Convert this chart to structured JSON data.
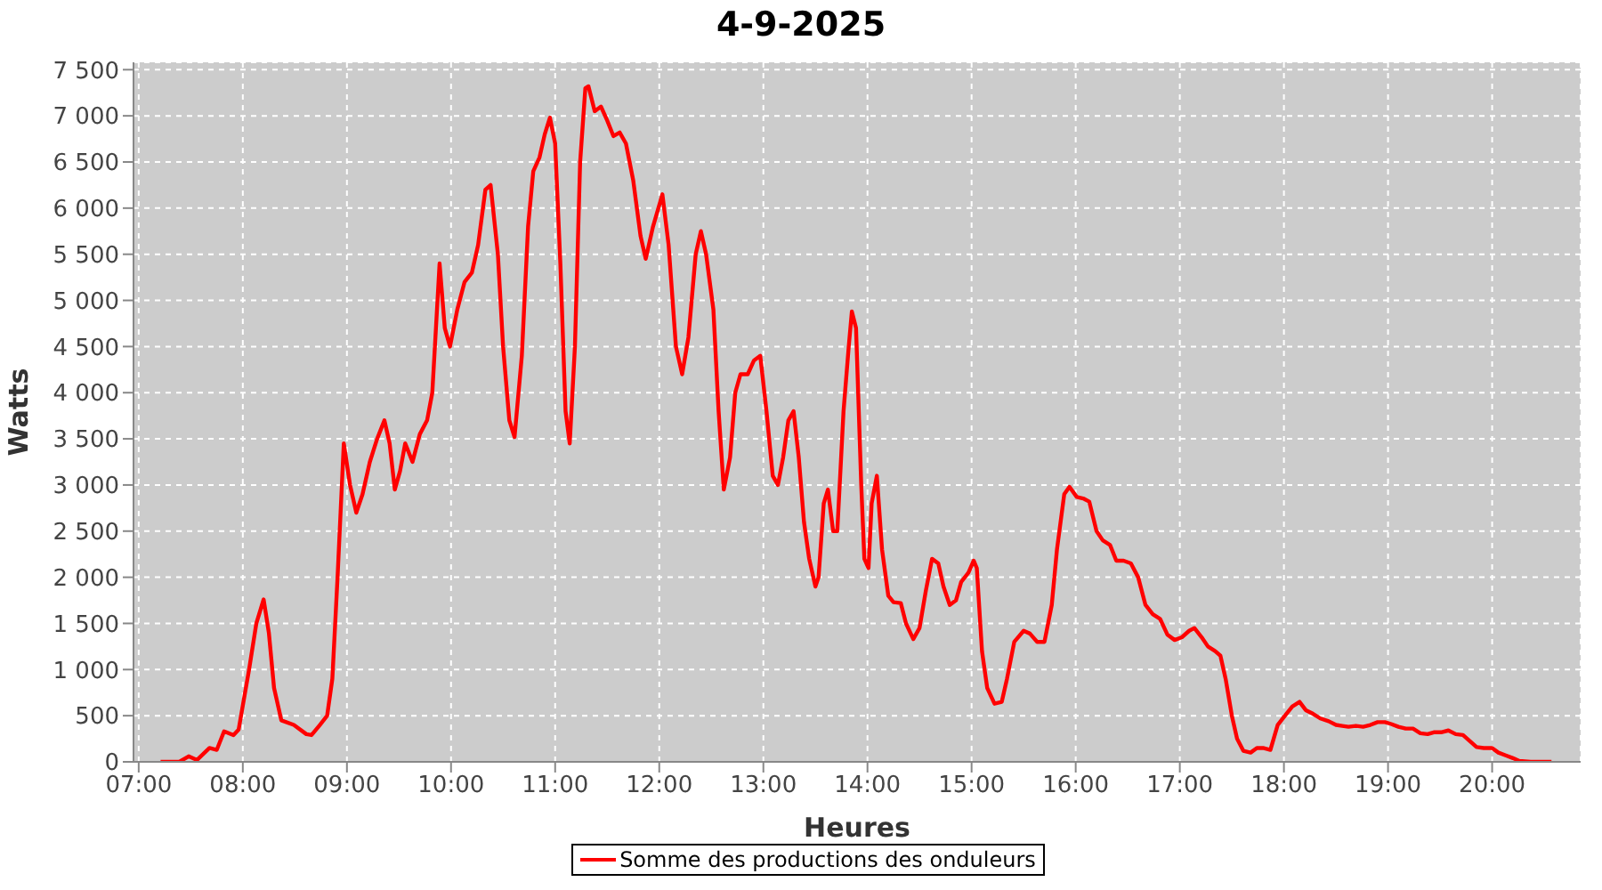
{
  "chart_data": {
    "type": "line",
    "title": "4-9-2025",
    "xlabel": "Heures",
    "ylabel": "Watts",
    "xlim": [
      6.95,
      20.85
    ],
    "xticks": [
      {
        "value": 7,
        "label": "07:00"
      },
      {
        "value": 8,
        "label": "08:00"
      },
      {
        "value": 9,
        "label": "09:00"
      },
      {
        "value": 10,
        "label": "10:00"
      },
      {
        "value": 11,
        "label": "11:00"
      },
      {
        "value": 12,
        "label": "12:00"
      },
      {
        "value": 13,
        "label": "13:00"
      },
      {
        "value": 14,
        "label": "14:00"
      },
      {
        "value": 15,
        "label": "15:00"
      },
      {
        "value": 16,
        "label": "16:00"
      },
      {
        "value": 17,
        "label": "17:00"
      },
      {
        "value": 18,
        "label": "18:00"
      },
      {
        "value": 19,
        "label": "19:00"
      },
      {
        "value": 20,
        "label": "20:00"
      }
    ],
    "ylim": [
      0,
      7580
    ],
    "yticks": [
      0,
      500,
      {
        "value": 1000,
        "label": "1 000"
      },
      {
        "value": 1500,
        "label": "1 500"
      },
      {
        "value": 2000,
        "label": "2 000"
      },
      {
        "value": 2500,
        "label": "2 500"
      },
      {
        "value": 3000,
        "label": "3 000"
      },
      {
        "value": 3500,
        "label": "3 500"
      },
      {
        "value": 4000,
        "label": "4 000"
      },
      {
        "value": 4500,
        "label": "4 500"
      },
      {
        "value": 5000,
        "label": "5 000"
      },
      {
        "value": 5500,
        "label": "5 500"
      },
      {
        "value": 6000,
        "label": "6 000"
      },
      {
        "value": 6500,
        "label": "6 500"
      },
      {
        "value": 7000,
        "label": "7 000"
      },
      {
        "value": 7500,
        "label": "7 500"
      }
    ],
    "grid": true,
    "legend": "bottom",
    "line_style": "solid",
    "x": [
      7.21,
      7.39,
      7.48,
      7.56,
      7.68,
      7.75,
      7.82,
      7.91,
      7.96,
      8.06,
      8.13,
      8.2,
      8.25,
      8.3,
      8.37,
      8.49,
      8.61,
      8.66,
      8.74,
      8.81,
      8.86,
      8.91,
      8.97,
      9.03,
      9.09,
      9.15,
      9.22,
      9.29,
      9.36,
      9.41,
      9.46,
      9.51,
      9.56,
      9.63,
      9.7,
      9.77,
      9.82,
      9.89,
      9.94,
      9.99,
      10.06,
      10.13,
      10.2,
      10.26,
      10.33,
      10.38,
      10.45,
      10.5,
      10.56,
      10.61,
      10.68,
      10.74,
      10.79,
      10.85,
      10.9,
      10.95,
      11.0,
      11.05,
      11.1,
      11.14,
      11.19,
      11.24,
      11.29,
      11.32,
      11.38,
      11.44,
      11.5,
      11.56,
      11.62,
      11.68,
      11.75,
      11.82,
      11.87,
      11.94,
      12.03,
      12.09,
      12.16,
      12.22,
      12.28,
      12.35,
      12.4,
      12.45,
      12.52,
      12.57,
      12.62,
      12.68,
      12.73,
      12.78,
      12.85,
      12.91,
      12.97,
      13.03,
      13.09,
      13.14,
      13.19,
      13.24,
      13.29,
      13.34,
      13.39,
      13.44,
      13.5,
      13.53,
      13.58,
      13.62,
      13.67,
      13.71,
      13.77,
      13.82,
      13.85,
      13.89,
      13.94,
      13.97,
      14.01,
      14.04,
      14.09,
      14.14,
      14.2,
      14.25,
      14.32,
      14.37,
      14.44,
      14.5,
      14.56,
      14.62,
      14.68,
      14.73,
      14.79,
      14.85,
      14.9,
      14.97,
      15.02,
      15.05,
      15.1,
      15.15,
      15.22,
      15.29,
      15.34,
      15.41,
      15.5,
      15.56,
      15.63,
      15.7,
      15.77,
      15.82,
      15.89,
      15.94,
      16.01,
      16.08,
      16.13,
      16.2,
      16.26,
      16.33,
      16.39,
      16.46,
      16.53,
      16.6,
      16.67,
      16.74,
      16.81,
      16.88,
      16.95,
      17.02,
      17.09,
      17.14,
      17.21,
      17.27,
      17.34,
      17.39,
      17.44,
      17.5,
      17.55,
      17.61,
      17.68,
      17.74,
      17.8,
      17.87,
      17.94,
      18.01,
      18.08,
      18.15,
      18.21,
      18.28,
      18.35,
      18.43,
      18.5,
      18.56,
      18.62,
      18.69,
      18.76,
      18.83,
      18.9,
      18.97,
      19.03,
      19.1,
      19.17,
      19.24,
      19.31,
      19.38,
      19.44,
      19.51,
      19.58,
      19.65,
      19.72,
      19.79,
      19.85,
      19.92,
      20.0,
      20.06,
      20.13,
      20.2,
      20.26,
      20.37,
      20.47,
      20.57
    ],
    "series": [
      {
        "name": "Somme des productions des onduleurs",
        "color": "#ff0000",
        "values": [
          0,
          0,
          60,
          20,
          150,
          130,
          330,
          290,
          350,
          1000,
          1500,
          1760,
          1400,
          800,
          450,
          400,
          300,
          290,
          400,
          500,
          900,
          2000,
          3450,
          3000,
          2700,
          2900,
          3250,
          3500,
          3700,
          3450,
          2950,
          3150,
          3450,
          3250,
          3550,
          3700,
          4000,
          5400,
          4700,
          4500,
          4900,
          5200,
          5300,
          5600,
          6200,
          6250,
          5500,
          4500,
          3700,
          3520,
          4400,
          5800,
          6400,
          6550,
          6800,
          6980,
          6700,
          5400,
          3800,
          3450,
          4500,
          6500,
          7300,
          7320,
          7050,
          7100,
          6950,
          6780,
          6820,
          6700,
          6300,
          5700,
          5450,
          5800,
          6150,
          5600,
          4500,
          4200,
          4600,
          5500,
          5750,
          5500,
          4900,
          3800,
          2950,
          3300,
          4000,
          4200,
          4200,
          4350,
          4400,
          3800,
          3100,
          3000,
          3300,
          3700,
          3800,
          3300,
          2600,
          2200,
          1900,
          2000,
          2800,
          2950,
          2500,
          2500,
          3800,
          4500,
          4880,
          4700,
          3000,
          2200,
          2100,
          2800,
          3100,
          2300,
          1800,
          1730,
          1720,
          1500,
          1330,
          1450,
          1850,
          2200,
          2150,
          1900,
          1700,
          1750,
          1950,
          2050,
          2180,
          2100,
          1200,
          800,
          630,
          650,
          900,
          1300,
          1420,
          1390,
          1300,
          1300,
          1700,
          2300,
          2900,
          2980,
          2870,
          2850,
          2820,
          2500,
          2400,
          2350,
          2180,
          2180,
          2150,
          2000,
          1700,
          1600,
          1550,
          1380,
          1320,
          1350,
          1420,
          1450,
          1350,
          1250,
          1200,
          1150,
          900,
          500,
          250,
          120,
          100,
          150,
          150,
          130,
          400,
          500,
          600,
          650,
          560,
          520,
          470,
          440,
          400,
          390,
          380,
          390,
          380,
          400,
          430,
          430,
          410,
          380,
          360,
          360,
          310,
          300,
          320,
          320,
          340,
          300,
          290,
          220,
          160,
          150,
          150,
          100,
          70,
          40,
          10,
          0,
          0,
          0
        ]
      }
    ]
  }
}
